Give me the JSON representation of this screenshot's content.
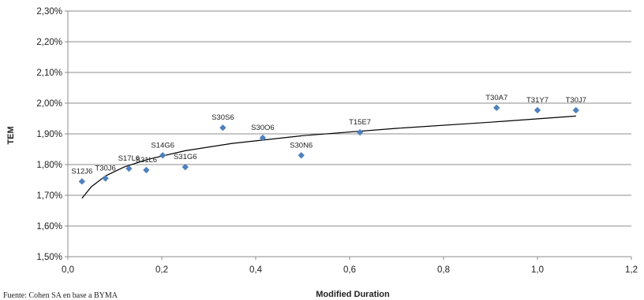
{
  "chart_data": {
    "type": "scatter",
    "xlabel": "Modified Duration",
    "ylabel": "TEM",
    "xlim": [
      0,
      1.2
    ],
    "ylim": [
      1.5,
      2.3
    ],
    "x_ticks": [
      "0,0",
      "0,2",
      "0,4",
      "0,6",
      "0,8",
      "1,0",
      "1,2"
    ],
    "y_ticks": [
      "1,50%",
      "1,60%",
      "1,70%",
      "1,80%",
      "1,90%",
      "2,00%",
      "2,10%",
      "2,20%",
      "2,30%"
    ],
    "grid": "horizontal",
    "marker_color": "#4f81bd",
    "points": [
      {
        "label": "S12J6",
        "x": 0.03,
        "y": 1.745
      },
      {
        "label": "T30J6",
        "x": 0.08,
        "y": 1.755
      },
      {
        "label": "S17L6",
        "x": 0.13,
        "y": 1.787
      },
      {
        "label": "S31L6",
        "x": 0.167,
        "y": 1.782
      },
      {
        "label": "S14G6",
        "x": 0.202,
        "y": 1.83
      },
      {
        "label": "S31G6",
        "x": 0.25,
        "y": 1.792
      },
      {
        "label": "S30S6",
        "x": 0.33,
        "y": 1.92
      },
      {
        "label": "S30O6",
        "x": 0.415,
        "y": 1.887
      },
      {
        "label": "S30N6",
        "x": 0.497,
        "y": 1.83
      },
      {
        "label": "T15E7",
        "x": 0.622,
        "y": 1.905
      },
      {
        "label": "T30A7",
        "x": 0.913,
        "y": 1.985
      },
      {
        "label": "T31Y7",
        "x": 1.0,
        "y": 1.977
      },
      {
        "label": "T30J7",
        "x": 1.082,
        "y": 1.977
      }
    ],
    "trendline": {
      "type": "logarithmic",
      "x": [
        0.03,
        0.05,
        0.08,
        0.12,
        0.17,
        0.25,
        0.35,
        0.5,
        0.7,
        0.9,
        1.082
      ],
      "y": [
        1.69,
        1.728,
        1.763,
        1.792,
        1.817,
        1.845,
        1.869,
        1.894,
        1.918,
        1.938,
        1.958
      ]
    }
  },
  "source_note": "Fuente: Cohen SA en base a BYMA"
}
